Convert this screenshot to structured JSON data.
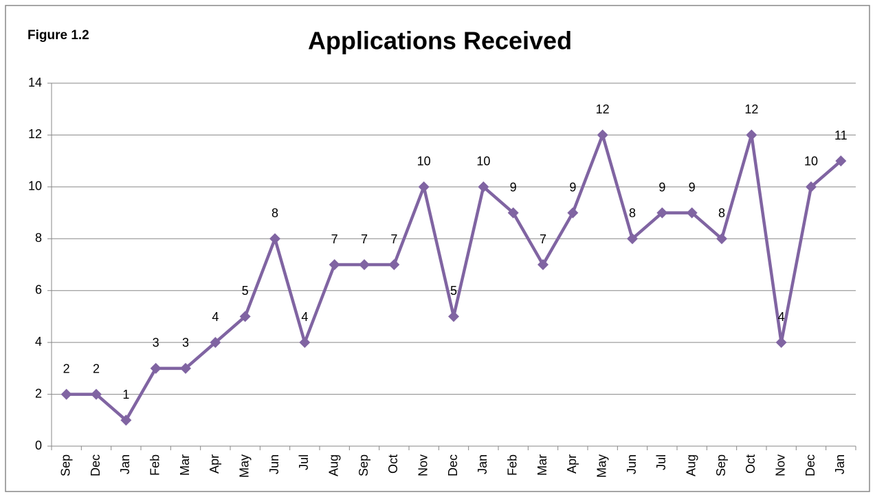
{
  "chart_data": {
    "type": "line",
    "title": "Applications Received",
    "annotation": "Figure 1.2",
    "categories": [
      "Sep",
      "Dec",
      "Jan",
      "Feb",
      "Mar",
      "Apr",
      "May",
      "Jun",
      "Jul",
      "Aug",
      "Sep",
      "Oct",
      "Nov",
      "Dec",
      "Jan",
      "Feb",
      "Mar",
      "Apr",
      "May",
      "Jun",
      "Jul",
      "Aug",
      "Sep",
      "Oct",
      "Nov",
      "Dec",
      "Jan"
    ],
    "values": [
      2,
      2,
      1,
      3,
      3,
      4,
      5,
      8,
      4,
      7,
      7,
      7,
      10,
      5,
      10,
      9,
      7,
      9,
      12,
      8,
      9,
      9,
      8,
      12,
      4,
      10,
      11
    ],
    "color": "#8064a2",
    "ylim": [
      0,
      14
    ],
    "yticks": [
      0,
      2,
      4,
      6,
      8,
      10,
      12,
      14
    ],
    "grid": true
  }
}
